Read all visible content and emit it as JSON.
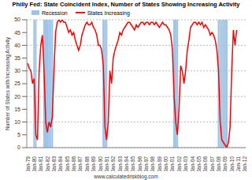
{
  "chart_data": {
    "type": "line",
    "title": "Philly Fed: State Coincident Index, Number of States Showing Increasing Activity",
    "y_label": "Number of States with Increasing Activity",
    "annotation": "www.calculatedriskblog.com",
    "categories": [
      "Jan-79",
      null,
      null,
      null,
      "Jan-80",
      null,
      null,
      null,
      "Jan-81",
      null,
      null,
      null,
      "Jan-82",
      null,
      null,
      null,
      "Jan-83",
      null,
      null,
      null,
      "Jan-84",
      null,
      null,
      null,
      "Jan-85",
      null,
      null,
      null,
      "Jan-86",
      null,
      null,
      null,
      "Jan-87",
      null,
      null,
      null,
      "Jan-88",
      null,
      null,
      null,
      "Jan-89",
      null,
      null,
      null,
      "Jan-90",
      null,
      null,
      null,
      "Jan-91",
      null,
      null,
      null,
      "Jan-92",
      null,
      null,
      null,
      "Jan-93",
      null,
      null,
      null,
      "Jan-94",
      null,
      null,
      null,
      "Jan-95",
      null,
      null,
      null,
      "Jan-96",
      null,
      null,
      null,
      "Jan-97",
      null,
      null,
      null,
      "Jan-98",
      null,
      null,
      null,
      "Jan-99",
      null,
      null,
      null,
      "Jan-00",
      null,
      null,
      null,
      "Jan-01",
      null,
      null,
      null,
      "Jan-02",
      null,
      null,
      null,
      "Jan-03",
      null,
      null,
      null,
      "Jan-04",
      null,
      null,
      null,
      "Jan-05",
      null,
      null,
      null,
      "Jan-06",
      null,
      null,
      null,
      "Jan-07",
      null,
      null,
      null,
      "Jan-08",
      null,
      null,
      null,
      "Jan-09",
      null,
      null,
      null,
      "Jan-10",
      null,
      null,
      null,
      "Jan-11",
      null,
      null,
      null,
      "Jan-12"
    ],
    "series": [
      {
        "name": "Recession",
        "type": "bar",
        "color": "#9dc3e6",
        "values": [
          null,
          null,
          null,
          null,
          50,
          50,
          null,
          null,
          null,
          null,
          50,
          50,
          50,
          50,
          50,
          50,
          null,
          null,
          null,
          null,
          null,
          null,
          null,
          null,
          null,
          null,
          null,
          null,
          null,
          null,
          null,
          null,
          null,
          null,
          null,
          null,
          null,
          null,
          null,
          null,
          null,
          null,
          null,
          null,
          null,
          null,
          50,
          50,
          50,
          null,
          null,
          null,
          null,
          null,
          null,
          null,
          null,
          null,
          null,
          null,
          null,
          null,
          null,
          null,
          null,
          null,
          null,
          null,
          null,
          null,
          null,
          null,
          null,
          null,
          null,
          null,
          null,
          null,
          null,
          null,
          null,
          null,
          null,
          null,
          null,
          null,
          null,
          null,
          null,
          50,
          50,
          50,
          null,
          null,
          null,
          null,
          null,
          null,
          null,
          null,
          null,
          null,
          null,
          null,
          null,
          null,
          null,
          null,
          null,
          null,
          null,
          null,
          null,
          null,
          null,
          null,
          50,
          50,
          50,
          50,
          50,
          50,
          null,
          null,
          null,
          null,
          null,
          null,
          null,
          null,
          null,
          null,
          null
        ]
      },
      {
        "name": "States Increasing",
        "type": "line",
        "color": "#ff0000",
        "values": [
          33,
          31,
          30,
          25,
          27,
          5,
          3,
          30,
          40,
          44,
          30,
          10,
          6,
          10,
          8,
          12,
          30,
          45,
          49,
          50,
          49,
          50,
          49,
          49,
          47,
          45,
          46,
          44,
          45,
          42,
          40,
          38,
          40,
          44,
          46,
          48,
          49,
          48,
          48,
          49,
          47,
          46,
          44,
          40,
          40,
          38,
          32,
          8,
          3,
          10,
          30,
          25,
          35,
          38,
          40,
          42,
          45,
          44,
          46,
          47,
          48,
          49,
          49,
          48,
          47,
          46,
          48,
          47,
          48,
          49,
          49,
          48,
          49,
          49,
          48,
          49,
          49,
          48,
          49,
          48,
          47,
          48,
          49,
          48,
          48,
          47,
          46,
          44,
          38,
          20,
          10,
          5,
          15,
          32,
          30,
          25,
          30,
          38,
          42,
          47,
          48,
          49,
          49,
          48,
          49,
          48,
          49,
          47,
          48,
          47,
          46,
          44,
          45,
          44,
          42,
          38,
          30,
          10,
          3,
          2,
          1,
          0,
          2,
          8,
          30,
          46,
          40,
          46,
          null,
          null,
          null,
          null,
          null
        ]
      }
    ],
    "ylim": [
      0,
      50
    ],
    "yticks": [
      0,
      5,
      10,
      15,
      20,
      25,
      30,
      35,
      40,
      45,
      50
    ],
    "grid": true,
    "legend": "top"
  }
}
